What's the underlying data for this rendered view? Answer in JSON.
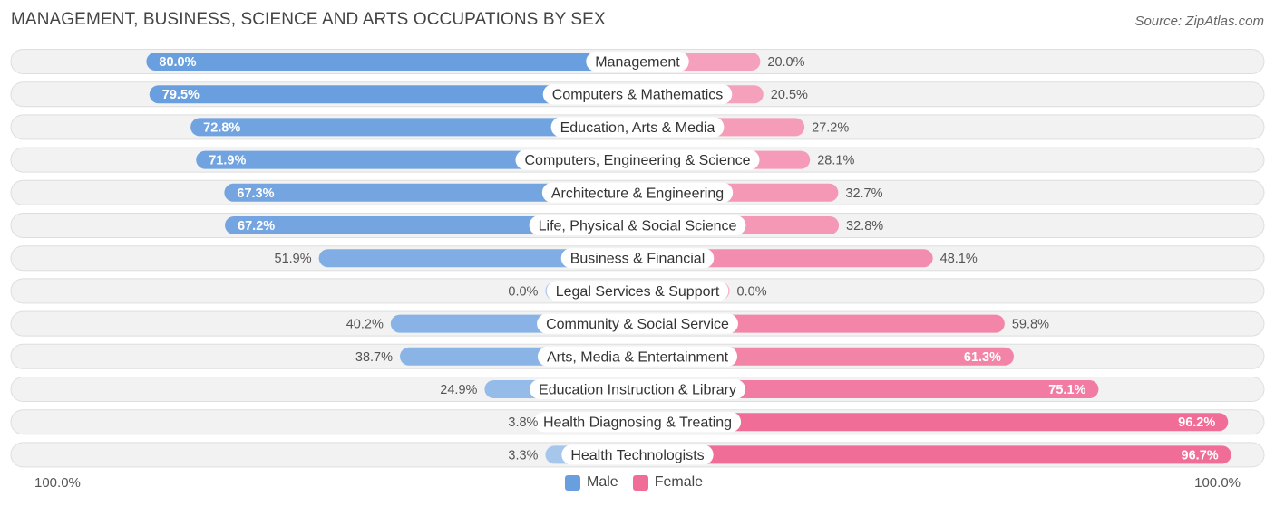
{
  "title": "MANAGEMENT, BUSINESS, SCIENCE AND ARTS OCCUPATIONS BY SEX",
  "source": "Source: ZipAtlas.com",
  "axis": {
    "left_label": "100.0%",
    "right_label": "100.0%"
  },
  "legend": [
    {
      "name": "Male",
      "color": "#6a9fdf"
    },
    {
      "name": "Female",
      "color": "#f06d98"
    }
  ],
  "chart_data": {
    "type": "bar",
    "orientation": "horizontal-diverging",
    "title": "MANAGEMENT, BUSINESS, SCIENCE AND ARTS OCCUPATIONS BY SEX",
    "xlim": [
      -100,
      100
    ],
    "categories": [
      "Management",
      "Computers & Mathematics",
      "Education, Arts & Media",
      "Computers, Engineering & Science",
      "Architecture & Engineering",
      "Life, Physical & Social Science",
      "Business & Financial",
      "Legal Services & Support",
      "Community & Social Service",
      "Arts, Media & Entertainment",
      "Education Instruction & Library",
      "Health Diagnosing & Treating",
      "Health Technologists"
    ],
    "series": [
      {
        "name": "Male",
        "values": [
          80.0,
          79.5,
          72.8,
          71.9,
          67.3,
          67.2,
          51.9,
          0.0,
          40.2,
          38.7,
          24.9,
          3.8,
          3.3
        ],
        "labels": [
          "80.0%",
          "79.5%",
          "72.8%",
          "71.9%",
          "67.3%",
          "67.2%",
          "51.9%",
          "0.0%",
          "40.2%",
          "38.7%",
          "24.9%",
          "3.8%",
          "3.3%"
        ]
      },
      {
        "name": "Female",
        "values": [
          20.0,
          20.5,
          27.2,
          28.1,
          32.7,
          32.8,
          48.1,
          0.0,
          59.8,
          61.3,
          75.1,
          96.2,
          96.7
        ],
        "labels": [
          "20.0%",
          "20.5%",
          "27.2%",
          "28.1%",
          "32.7%",
          "32.8%",
          "48.1%",
          "0.0%",
          "59.8%",
          "61.3%",
          "75.1%",
          "96.2%",
          "96.7%"
        ]
      }
    ],
    "legend_position": "bottom-center"
  }
}
